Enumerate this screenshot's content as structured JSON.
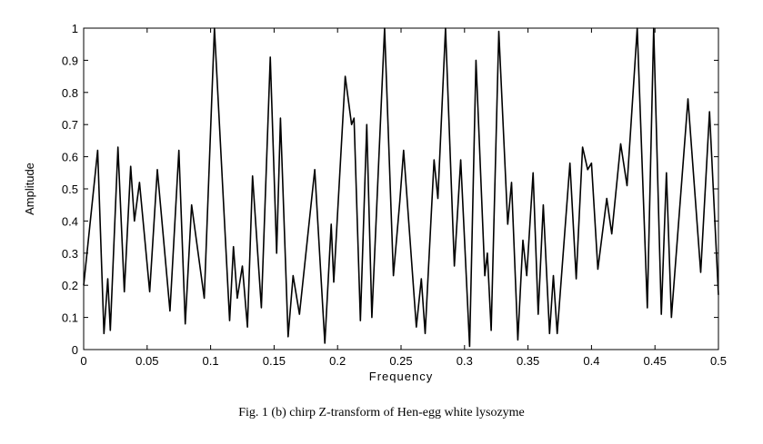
{
  "chart_data": {
    "type": "line",
    "title": "",
    "xlabel": "Frequency",
    "ylabel": "Amplitude",
    "xlim": [
      0,
      0.5
    ],
    "ylim": [
      0,
      1
    ],
    "xticks": [
      "0",
      "0.05",
      "0.1",
      "0.15",
      "0.2",
      "0.25",
      "0.3",
      "0.35",
      "0.4",
      "0.45",
      "0.5"
    ],
    "yticks": [
      "0",
      "0.1",
      "0.2",
      "0.3",
      "0.4",
      "0.5",
      "0.6",
      "0.7",
      "0.8",
      "0.9",
      "1"
    ],
    "grid": false,
    "series": [
      {
        "name": "chirp Z-transform",
        "color": "#000000",
        "x": [
          0,
          0.011,
          0.016,
          0.019,
          0.021,
          0.027,
          0.032,
          0.037,
          0.04,
          0.044,
          0.052,
          0.058,
          0.068,
          0.075,
          0.08,
          0.085,
          0.095,
          0.103,
          0.115,
          0.118,
          0.121,
          0.125,
          0.129,
          0.133,
          0.14,
          0.147,
          0.152,
          0.155,
          0.161,
          0.165,
          0.17,
          0.182,
          0.19,
          0.195,
          0.197,
          0.206,
          0.211,
          0.213,
          0.218,
          0.223,
          0.227,
          0.237,
          0.244,
          0.249,
          0.252,
          0.262,
          0.266,
          0.269,
          0.276,
          0.279,
          0.285,
          0.292,
          0.297,
          0.304,
          0.309,
          0.316,
          0.318,
          0.321,
          0.327,
          0.334,
          0.337,
          0.342,
          0.346,
          0.349,
          0.354,
          0.358,
          0.362,
          0.367,
          0.37,
          0.373,
          0.383,
          0.388,
          0.393,
          0.397,
          0.4,
          0.405,
          0.412,
          0.416,
          0.423,
          0.428,
          0.436,
          0.444,
          0.449,
          0.455,
          0.459,
          0.463,
          0.476,
          0.486,
          0.493,
          0.5
        ],
        "y": [
          0.2,
          0.62,
          0.05,
          0.22,
          0.06,
          0.63,
          0.18,
          0.57,
          0.4,
          0.52,
          0.18,
          0.56,
          0.12,
          0.62,
          0.08,
          0.45,
          0.16,
          1.0,
          0.09,
          0.32,
          0.16,
          0.26,
          0.07,
          0.54,
          0.13,
          0.91,
          0.3,
          0.72,
          0.04,
          0.23,
          0.11,
          0.56,
          0.02,
          0.39,
          0.21,
          0.85,
          0.7,
          0.72,
          0.09,
          0.7,
          0.1,
          1.0,
          0.23,
          0.46,
          0.62,
          0.07,
          0.22,
          0.05,
          0.59,
          0.47,
          1.0,
          0.26,
          0.59,
          0.01,
          0.9,
          0.23,
          0.3,
          0.06,
          0.99,
          0.39,
          0.52,
          0.03,
          0.34,
          0.23,
          0.55,
          0.11,
          0.45,
          0.05,
          0.23,
          0.05,
          0.58,
          0.22,
          0.63,
          0.56,
          0.58,
          0.25,
          0.47,
          0.36,
          0.64,
          0.51,
          1.0,
          0.13,
          1.0,
          0.11,
          0.55,
          0.1,
          0.78,
          0.24,
          0.74,
          0.17
        ]
      }
    ]
  },
  "caption": "Fig. 1 (b) chirp Z-transform of Hen-egg  white lysozyme"
}
